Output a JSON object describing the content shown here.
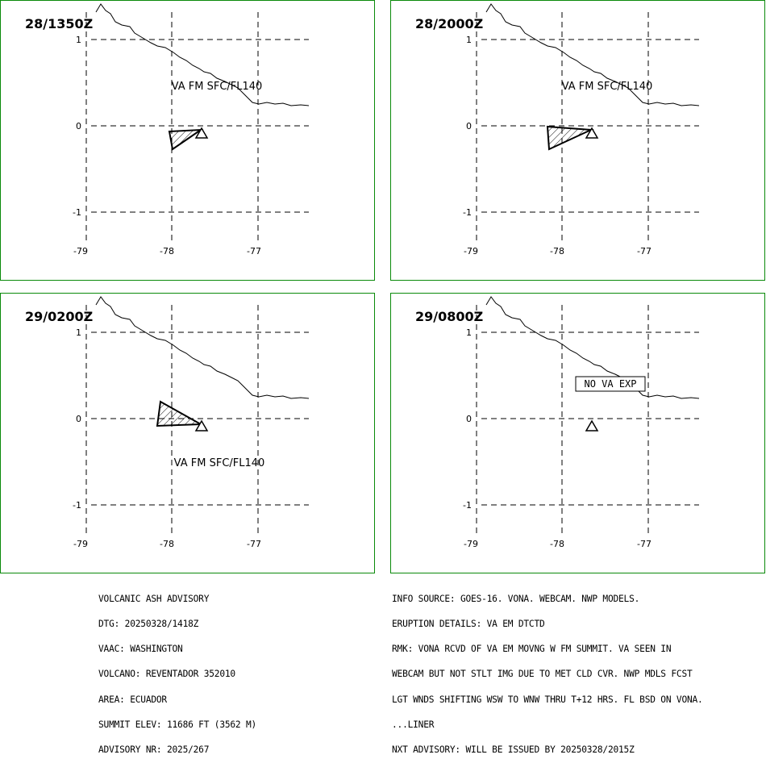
{
  "panels": [
    {
      "time": "28/1350Z",
      "va_label": "VA FM SFC/FL140",
      "no_va_label": "",
      "lat_ticks": [
        "1",
        "0",
        "-1"
      ],
      "lon_ticks": [
        "-79",
        "-78",
        "-77"
      ]
    },
    {
      "time": "28/2000Z",
      "va_label": "VA FM SFC/FL140",
      "no_va_label": "",
      "lat_ticks": [
        "1",
        "0",
        "-1"
      ],
      "lon_ticks": [
        "-79",
        "-78",
        "-77"
      ]
    },
    {
      "time": "29/0200Z",
      "va_label": "VA FM SFC/FL140",
      "no_va_label": "",
      "lat_ticks": [
        "1",
        "0",
        "-1"
      ],
      "lon_ticks": [
        "-79",
        "-78",
        "-77"
      ]
    },
    {
      "time": "29/0800Z",
      "va_label": "",
      "no_va_label": "NO VA EXP",
      "lat_ticks": [
        "1",
        "0",
        "-1"
      ],
      "lon_ticks": [
        "-79",
        "-78",
        "-77"
      ]
    }
  ],
  "advisory_left": [
    "VOLCANIC ASH ADVISORY",
    "DTG: 20250328/1418Z",
    "VAAC: WASHINGTON",
    "VOLCANO: REVENTADOR 352010",
    "AREA: ECUADOR",
    "SUMMIT ELEV: 11686 FT (3562 M)",
    "ADVISORY NR: 2025/267"
  ],
  "advisory_right": [
    "INFO SOURCE: GOES-16. VONA. WEBCAM. NWP MODELS.",
    "ERUPTION DETAILS: VA EM DTCTD",
    "RMK: VONA RCVD OF VA EM MOVNG W FM SUMMIT. VA SEEN IN",
    "WEBCAM BUT NOT STLT IMG DUE TO MET CLD CVR. NWP MDLS FCST",
    "LGT WNDS SHIFTING WSW TO WNW THRU T+12 HRS. FL BSD ON VONA.",
    "...LINER",
    "NXT ADVISORY: WILL BE ISSUED BY 20250328/2015Z"
  ],
  "colors": {
    "panel_border": "#0a8a0a",
    "lines": "#000000"
  },
  "icons": {
    "volcano": "volcano-triangle-icon"
  }
}
